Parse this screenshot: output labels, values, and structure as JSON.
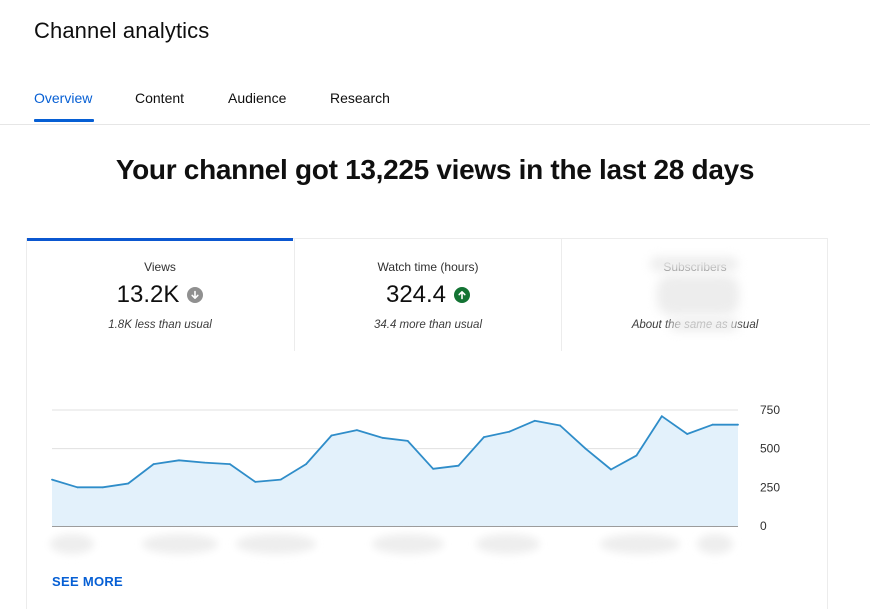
{
  "page": {
    "title": "Channel analytics",
    "tabs": [
      {
        "label": "Overview",
        "active": true
      },
      {
        "label": "Content",
        "active": false
      },
      {
        "label": "Audience",
        "active": false
      },
      {
        "label": "Research",
        "active": false
      }
    ],
    "headline": "Your channel got 13,225 views in the last 28 days"
  },
  "metrics": [
    {
      "label": "Views",
      "value": "13.2K",
      "trend": "down",
      "trend_icon": "arrow-down-icon",
      "comparison": "1.8K less than usual"
    },
    {
      "label": "Watch time (hours)",
      "value": "324.4",
      "trend": "up",
      "trend_icon": "arrow-up-icon",
      "comparison": "34.4 more than usual"
    },
    {
      "label": "Subscribers",
      "value": "",
      "trend": "none",
      "comparison": "About the same as usual"
    }
  ],
  "colors": {
    "accent": "#065fd4",
    "line": "#2f8dc9",
    "area": "#e3f1fb",
    "trend_up": "#137333",
    "trend_down": "#909090"
  },
  "chart_data": {
    "type": "area",
    "ylim": [
      0,
      750
    ],
    "yticks": [
      "750",
      "500",
      "250",
      "0"
    ],
    "ytick_values": [
      750,
      500,
      250,
      0
    ],
    "grid": true,
    "x_labels_visible": false,
    "series": [
      {
        "values": [
          300,
          250,
          250,
          275,
          400,
          425,
          410,
          400,
          285,
          300,
          400,
          585,
          620,
          570,
          550,
          370,
          390,
          575,
          610,
          680,
          650,
          500,
          365,
          455,
          710,
          595,
          655,
          655
        ]
      }
    ]
  },
  "actions": {
    "see_more": "SEE MORE"
  }
}
